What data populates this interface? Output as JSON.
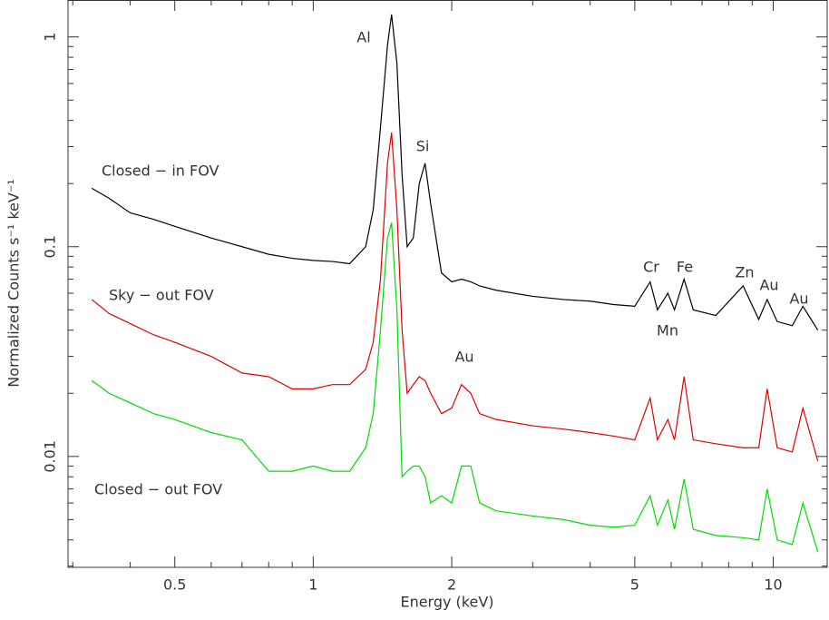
{
  "chart_data": {
    "type": "line",
    "log_x": true,
    "log_y": true,
    "xlabel": "Energy (keV)",
    "ylabel": "Normalized Counts s⁻¹ keV⁻¹",
    "xlim": [
      0.293,
      13.1
    ],
    "ylim": [
      0.00296,
      1.5
    ],
    "xticks": [
      0.5,
      1,
      2,
      5,
      10
    ],
    "yticks": [
      0.01,
      0.1,
      1
    ],
    "xminorticks": [
      0.3,
      0.4,
      0.6,
      0.7,
      0.8,
      0.9,
      3,
      4,
      6,
      7,
      8,
      9
    ],
    "yminorticks": [
      0.003,
      0.004,
      0.005,
      0.006,
      0.007,
      0.008,
      0.009,
      0.02,
      0.03,
      0.04,
      0.05,
      0.06,
      0.07,
      0.08,
      0.09,
      0.2,
      0.3,
      0.4,
      0.5,
      0.6,
      0.7,
      0.8,
      0.9
    ],
    "x": [
      0.33,
      0.36,
      0.4,
      0.45,
      0.5,
      0.6,
      0.7,
      0.8,
      0.9,
      1.0,
      1.1,
      1.2,
      1.3,
      1.35,
      1.4,
      1.45,
      1.48,
      1.52,
      1.56,
      1.6,
      1.65,
      1.7,
      1.75,
      1.8,
      1.9,
      2.0,
      2.1,
      2.2,
      2.3,
      2.5,
      3,
      3.5,
      4,
      4.5,
      5,
      5.4,
      5.6,
      5.9,
      6.1,
      6.4,
      6.7,
      7.5,
      8.6,
      9.3,
      9.7,
      10.2,
      11,
      11.6,
      12.5
    ],
    "series": [
      {
        "name": "Closed − in FOV",
        "color": "#000000",
        "values": [
          0.19,
          0.17,
          0.145,
          0.135,
          0.125,
          0.11,
          0.1,
          0.092,
          0.088,
          0.086,
          0.085,
          0.083,
          0.1,
          0.15,
          0.37,
          0.91,
          1.28,
          0.75,
          0.22,
          0.1,
          0.11,
          0.2,
          0.25,
          0.16,
          0.075,
          0.068,
          0.07,
          0.068,
          0.065,
          0.062,
          0.058,
          0.056,
          0.055,
          0.053,
          0.052,
          0.068,
          0.05,
          0.06,
          0.05,
          0.07,
          0.05,
          0.047,
          0.065,
          0.045,
          0.056,
          0.044,
          0.042,
          0.052,
          0.04
        ]
      },
      {
        "name": "Sky − out FOV",
        "color": "#e00000",
        "values": [
          0.056,
          0.048,
          0.043,
          0.038,
          0.035,
          0.03,
          0.025,
          0.024,
          0.021,
          0.021,
          0.022,
          0.022,
          0.026,
          0.035,
          0.07,
          0.25,
          0.35,
          0.15,
          0.04,
          0.02,
          0.022,
          0.024,
          0.023,
          0.02,
          0.016,
          0.017,
          0.022,
          0.02,
          0.016,
          0.015,
          0.014,
          0.0135,
          0.013,
          0.0125,
          0.012,
          0.019,
          0.012,
          0.015,
          0.012,
          0.024,
          0.012,
          0.0115,
          0.011,
          0.011,
          0.021,
          0.011,
          0.0105,
          0.017,
          0.0095
        ]
      },
      {
        "name": "Closed − out FOV",
        "color": "#00dd00",
        "values": [
          0.023,
          0.02,
          0.018,
          0.016,
          0.015,
          0.013,
          0.012,
          0.0085,
          0.0085,
          0.009,
          0.0085,
          0.0085,
          0.011,
          0.016,
          0.04,
          0.11,
          0.13,
          0.05,
          0.008,
          0.0085,
          0.009,
          0.009,
          0.008,
          0.006,
          0.0065,
          0.006,
          0.009,
          0.009,
          0.006,
          0.0055,
          0.0052,
          0.005,
          0.0047,
          0.0046,
          0.0047,
          0.0065,
          0.0047,
          0.0062,
          0.0045,
          0.0078,
          0.0045,
          0.0042,
          0.0041,
          0.004,
          0.007,
          0.004,
          0.0038,
          0.006,
          0.0035
        ]
      }
    ],
    "annotations": [
      "Al",
      "Si",
      "Cr",
      "Fe",
      "Zn",
      "Au",
      "Au",
      "Mn",
      "Au"
    ]
  }
}
